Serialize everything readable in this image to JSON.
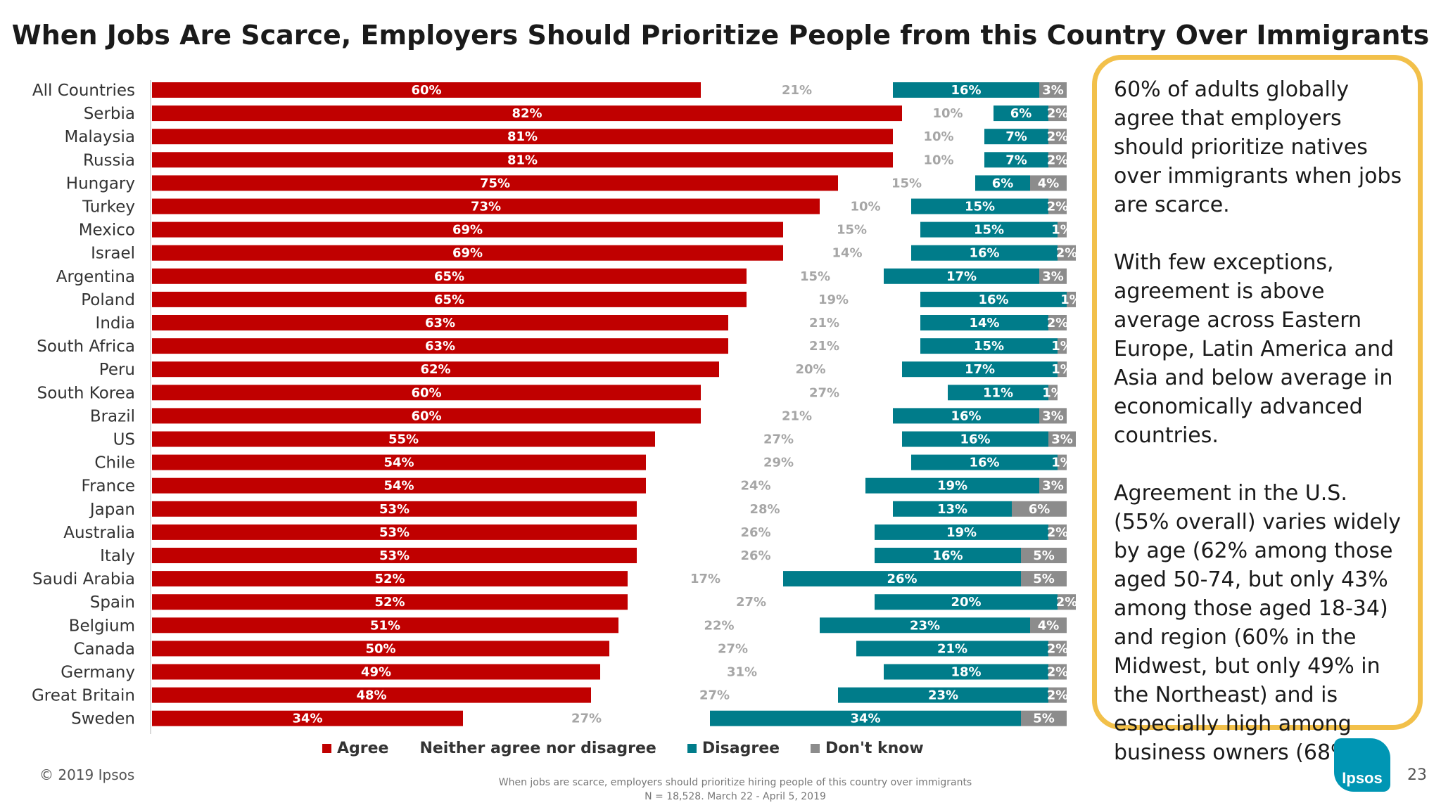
{
  "title": "When Jobs Are Scarce, Employers Should Prioritize People from this Country  Over Immigrants",
  "colors": {
    "agree": "#c00000",
    "neither": "#ffffff",
    "disagree": "#007c8a",
    "dont_know": "#8c8c8c",
    "callout_border": "#f2c04a"
  },
  "chart_data": {
    "type": "bar",
    "orientation": "horizontal",
    "stacked": true,
    "categories": [
      "All Countries",
      "Serbia",
      "Malaysia",
      "Russia",
      "Hungary",
      "Turkey",
      "Mexico",
      "Israel",
      "Argentina",
      "Poland",
      "India",
      "South Africa",
      "Peru",
      "South Korea",
      "Brazil",
      "US",
      "Chile",
      "France",
      "Japan",
      "Australia",
      "Italy",
      "Saudi Arabia",
      "Spain",
      "Belgium",
      "Canada",
      "Germany",
      "Great Britain",
      "Sweden"
    ],
    "series": [
      {
        "name": "Agree",
        "values": [
          60,
          82,
          81,
          81,
          75,
          73,
          69,
          69,
          65,
          65,
          63,
          63,
          62,
          60,
          60,
          55,
          54,
          54,
          53,
          53,
          53,
          52,
          52,
          51,
          50,
          49,
          48,
          34
        ]
      },
      {
        "name": "Neither agree nor disagree",
        "values": [
          21,
          10,
          10,
          10,
          15,
          10,
          15,
          14,
          15,
          19,
          21,
          21,
          20,
          27,
          21,
          27,
          29,
          24,
          28,
          26,
          26,
          17,
          27,
          22,
          27,
          31,
          27,
          27
        ]
      },
      {
        "name": "Disagree",
        "values": [
          16,
          6,
          7,
          7,
          6,
          15,
          15,
          16,
          17,
          16,
          14,
          15,
          17,
          11,
          16,
          16,
          16,
          19,
          13,
          19,
          16,
          26,
          20,
          23,
          21,
          18,
          23,
          34
        ]
      },
      {
        "name": "Don't know",
        "values": [
          3,
          2,
          2,
          2,
          4,
          2,
          1,
          2,
          3,
          1,
          2,
          1,
          1,
          1,
          3,
          3,
          1,
          3,
          6,
          2,
          5,
          5,
          2,
          4,
          2,
          2,
          2,
          5
        ]
      }
    ],
    "xlim": [
      0,
      100
    ],
    "grid": false,
    "legend_position": "bottom"
  },
  "legend": [
    {
      "label": "Agree",
      "color": "#c00000",
      "show_swatch": true
    },
    {
      "label": "Neither agree nor disagree",
      "color": "#ffffff",
      "show_swatch": false
    },
    {
      "label": "Disagree",
      "color": "#007c8a",
      "show_swatch": true
    },
    {
      "label": "Don't know",
      "color": "#8c8c8c",
      "show_swatch": true
    }
  ],
  "callout": {
    "p1": "60% of adults globally agree that employers should prioritize natives over immigrants when jobs are scarce.",
    "p2": "With few exceptions, agreement is above average across Eastern Europe, Latin America and Asia and below average in economically advanced countries.",
    "p3": "Agreement in the U.S. (55% overall) varies widely by age (62% among those aged 50-74, but only 43% among those aged 18-34) and region (60% in the Midwest, but only 49% in the Northeast) and is especially high among business owners (68%)."
  },
  "footer": {
    "copyright": "© 2019 Ipsos",
    "question": "When jobs are scarce, employers should prioritize hiring people of this country over immigrants",
    "sample": "N = 18,528. March 22 - April 5, 2019",
    "logo_text": "Ipsos",
    "page_number": "23"
  }
}
